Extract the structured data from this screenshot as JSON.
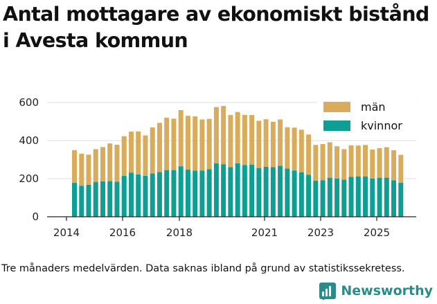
{
  "title": "Antal mottagare av ekonomiskt bistånd i Avesta kommun",
  "footnote": "Tre månaders medelvärden. Data saknas ibland på grund av statistikssekretess.",
  "brand": "Newsworthy",
  "colors": {
    "man": "#d9ac5b",
    "kvinnor": "#0e9e94",
    "brand": "#2a8a8c"
  },
  "chart_data": {
    "type": "bar",
    "stacked": true,
    "title": "Antal mottagare av ekonomiskt bistånd i Avesta kommun",
    "xlabel": "",
    "ylabel": "",
    "ylim": [
      0,
      600
    ],
    "yticks": [
      0,
      200,
      400,
      600
    ],
    "xticks": [
      "2014",
      "2016",
      "2018",
      "2021",
      "2023",
      "2025"
    ],
    "legend": {
      "position": "top-right",
      "entries": [
        "män",
        "kvinnor"
      ]
    },
    "series": [
      {
        "name": "kvinnor",
        "values": [
          178,
          163,
          168,
          183,
          186,
          187,
          184,
          215,
          232,
          222,
          215,
          227,
          235,
          245,
          245,
          265,
          248,
          242,
          243,
          250,
          280,
          276,
          260,
          280,
          272,
          274,
          256,
          262,
          261,
          268,
          253,
          243,
          234,
          220,
          190,
          192,
          205,
          200,
          195,
          210,
          212,
          212,
          200,
          205,
          205,
          192,
          178
        ]
      },
      {
        "name": "män",
        "values": [
          172,
          168,
          158,
          172,
          180,
          198,
          194,
          208,
          215,
          226,
          212,
          242,
          258,
          275,
          270,
          295,
          282,
          285,
          268,
          264,
          296,
          306,
          274,
          270,
          263,
          260,
          248,
          250,
          238,
          243,
          217,
          225,
          223,
          212,
          187,
          190,
          186,
          170,
          160,
          165,
          162,
          165,
          153,
          155,
          160,
          157,
          147
        ]
      }
    ]
  }
}
